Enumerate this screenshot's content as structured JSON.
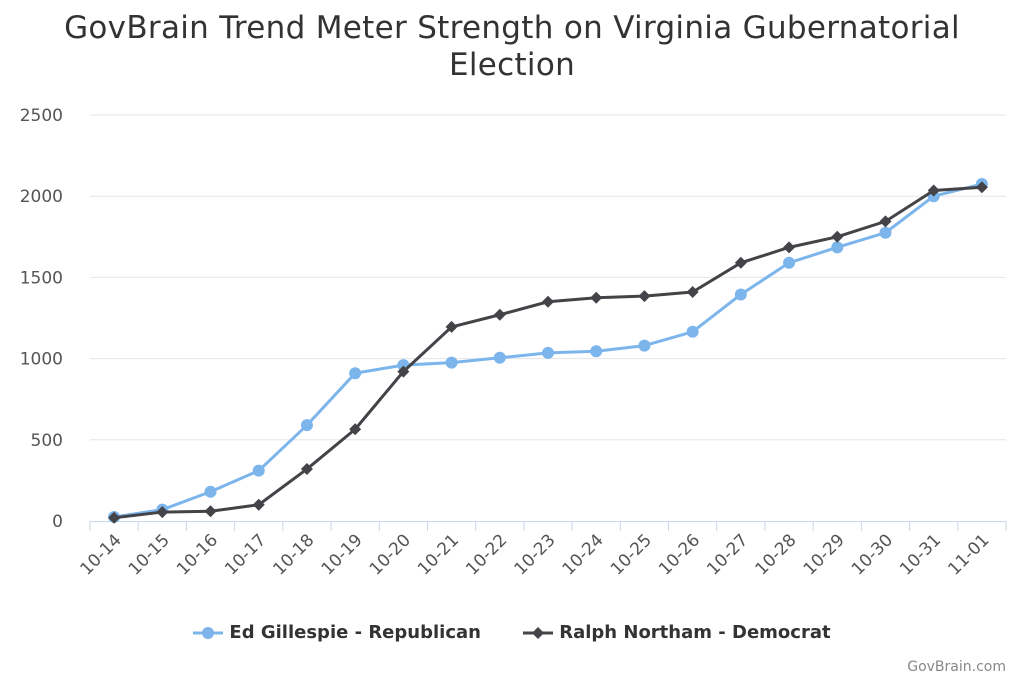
{
  "chart_data": {
    "type": "line",
    "title_lines": [
      "GovBrain Trend Meter Strength on Virginia Gubernatorial",
      "Election"
    ],
    "categories": [
      "10-14",
      "10-15",
      "10-16",
      "10-17",
      "10-18",
      "10-19",
      "10-20",
      "10-21",
      "10-22",
      "10-23",
      "10-24",
      "10-25",
      "10-26",
      "10-27",
      "10-28",
      "10-29",
      "10-30",
      "10-31",
      "11-01"
    ],
    "ylim": [
      0,
      2500
    ],
    "yticks": [
      0,
      500,
      1000,
      1500,
      2000,
      2500
    ],
    "grid": true,
    "legend_position": "bottom",
    "series": [
      {
        "name": "Ed Gillespie - Republican",
        "color": "#7cb5ec",
        "marker": "circle",
        "values": [
          25,
          70,
          180,
          310,
          590,
          910,
          960,
          975,
          1005,
          1035,
          1045,
          1080,
          1165,
          1395,
          1590,
          1685,
          1775,
          2000,
          2075
        ]
      },
      {
        "name": "Ralph Northam - Democrat",
        "color": "#434348",
        "marker": "diamond",
        "values": [
          20,
          55,
          60,
          100,
          320,
          565,
          920,
          1195,
          1270,
          1350,
          1375,
          1385,
          1410,
          1590,
          1685,
          1750,
          1845,
          2035,
          2055
        ]
      }
    ]
  },
  "credit": "GovBrain.com"
}
